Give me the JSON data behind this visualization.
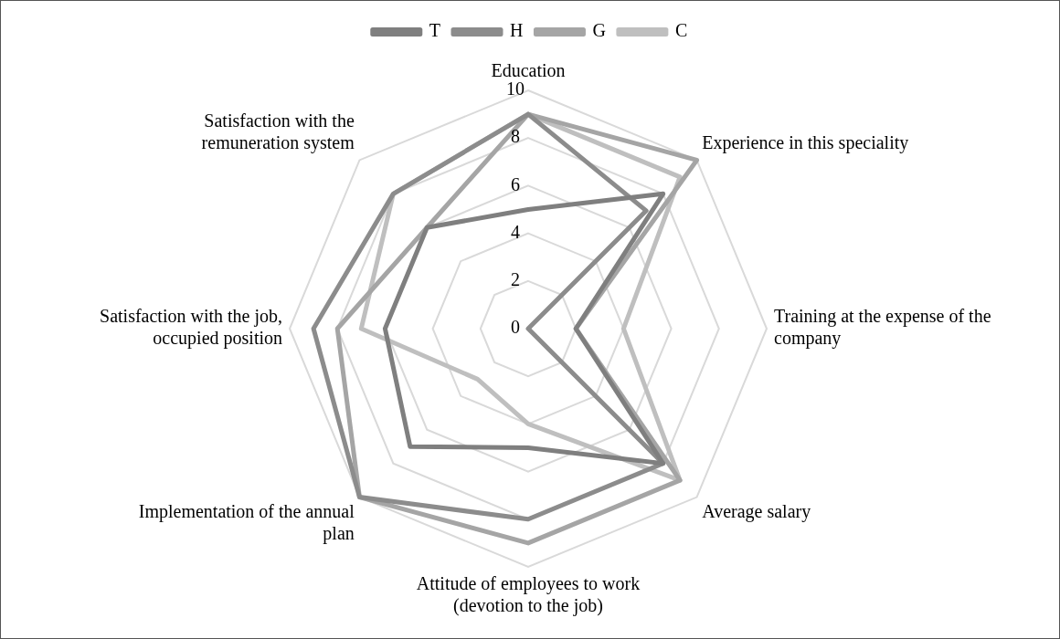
{
  "chart_data": {
    "type": "radar",
    "categories": [
      "Education",
      "Experience in this speciality",
      "Training at the expense of the company",
      "Average salary",
      "Attitude of employees to work (devotion to the job)",
      "Implementation of the annual plan",
      "Satisfaction with the job, occupied position",
      "Satisfaction with the remuneration system"
    ],
    "series": [
      {
        "name": "T",
        "color": "#7f7f7f",
        "values": [
          5,
          8,
          2,
          8,
          5,
          7,
          6,
          6
        ]
      },
      {
        "name": "H",
        "color": "#8c8c8c",
        "values": [
          9,
          7,
          0,
          8,
          8,
          10,
          9,
          8
        ]
      },
      {
        "name": "G",
        "color": "#a5a5a5",
        "values": [
          9,
          10,
          2,
          9,
          9,
          10,
          8,
          6
        ]
      },
      {
        "name": "C",
        "color": "#bfbfbf",
        "values": [
          9,
          9,
          4,
          9,
          4,
          3,
          7,
          8
        ]
      }
    ],
    "ylim": [
      0,
      10
    ],
    "yticks": [
      0,
      2,
      4,
      6,
      8,
      10
    ],
    "grid": true,
    "legend": "top",
    "marker": "none",
    "line_style": "solid"
  }
}
